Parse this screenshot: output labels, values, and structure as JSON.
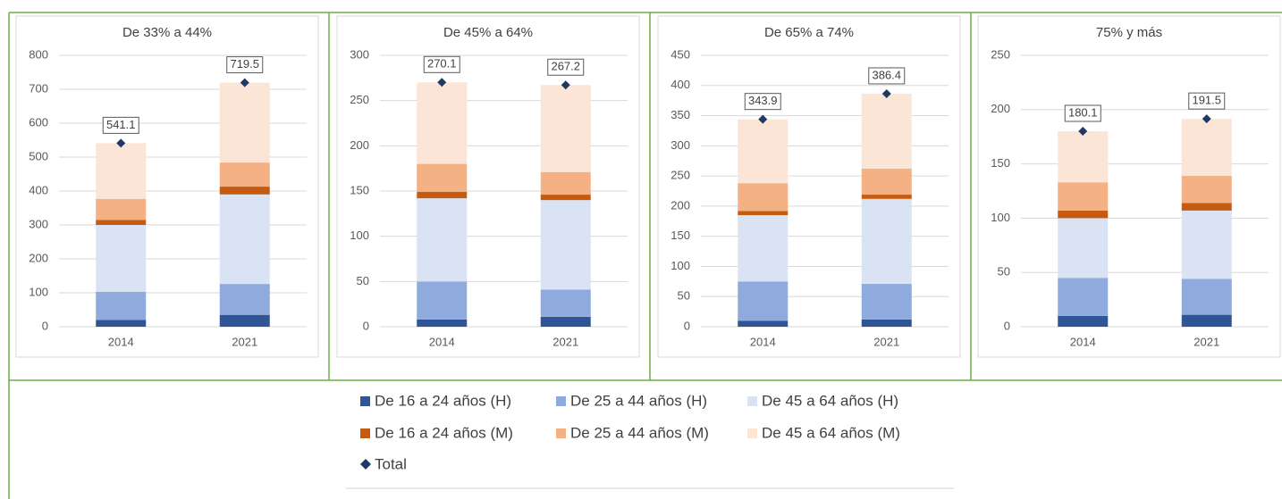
{
  "chart_data": [
    {
      "type": "stacked-bar",
      "title": "De 33% a 44%",
      "categories": [
        "2014",
        "2021"
      ],
      "ylim": [
        0,
        800
      ],
      "yticks": [
        0,
        100,
        200,
        300,
        400,
        500,
        600,
        700,
        800
      ],
      "grid": true,
      "series": [
        {
          "name": "De 16 a 24 años (H)",
          "color": "#2f5597",
          "values": [
            20,
            35
          ]
        },
        {
          "name": "De 25 a 44 años (H)",
          "color": "#8faadc",
          "values": [
            83,
            91
          ]
        },
        {
          "name": "De 45 a 64 años (H)",
          "color": "#dae3f3",
          "values": [
            197,
            264
          ]
        },
        {
          "name": "De 16 a 24 años (M)",
          "color": "#c55a11",
          "values": [
            15,
            23
          ]
        },
        {
          "name": "De 25 a 44 años (M)",
          "color": "#f4b183",
          "values": [
            62,
            71
          ]
        },
        {
          "name": "De 45 a 64 años (M)",
          "color": "#fbe5d6",
          "values": [
            164.1,
            235.5
          ]
        }
      ],
      "total": {
        "name": "Total",
        "color": "#203864",
        "values": [
          541.1,
          719.5
        ]
      }
    },
    {
      "type": "stacked-bar",
      "title": "De 45% a 64%",
      "categories": [
        "2014",
        "2021"
      ],
      "ylim": [
        0,
        300
      ],
      "yticks": [
        0,
        50,
        100,
        150,
        200,
        250,
        300
      ],
      "grid": true,
      "series": [
        {
          "name": "De 16 a 24 años (H)",
          "color": "#2f5597",
          "values": [
            8,
            11
          ]
        },
        {
          "name": "De 25 a 44 años (H)",
          "color": "#8faadc",
          "values": [
            42,
            30
          ]
        },
        {
          "name": "De 45 a 64 años (H)",
          "color": "#dae3f3",
          "values": [
            92,
            99
          ]
        },
        {
          "name": "De 16 a 24 años (M)",
          "color": "#c55a11",
          "values": [
            7,
            6
          ]
        },
        {
          "name": "De 25 a 44 años (M)",
          "color": "#f4b183",
          "values": [
            31,
            25
          ]
        },
        {
          "name": "De 45 a 64 años (M)",
          "color": "#fbe5d6",
          "values": [
            90.1,
            96.2
          ]
        }
      ],
      "total": {
        "name": "Total",
        "color": "#203864",
        "values": [
          270.1,
          267.2
        ]
      }
    },
    {
      "type": "stacked-bar",
      "title": "De 65% a 74%",
      "categories": [
        "2014",
        "2021"
      ],
      "ylim": [
        0,
        450
      ],
      "yticks": [
        0,
        50,
        100,
        150,
        200,
        250,
        300,
        350,
        400,
        450
      ],
      "grid": true,
      "series": [
        {
          "name": "De 16 a 24 años (H)",
          "color": "#2f5597",
          "values": [
            10,
            12
          ]
        },
        {
          "name": "De 25 a 44 años (H)",
          "color": "#8faadc",
          "values": [
            65,
            59
          ]
        },
        {
          "name": "De 45 a 64 años (H)",
          "color": "#dae3f3",
          "values": [
            110,
            141
          ]
        },
        {
          "name": "De 16 a 24 años (M)",
          "color": "#c55a11",
          "values": [
            7,
            7
          ]
        },
        {
          "name": "De 25 a 44 años (M)",
          "color": "#f4b183",
          "values": [
            46,
            43
          ]
        },
        {
          "name": "De 45 a 64 años (M)",
          "color": "#fbe5d6",
          "values": [
            105.9,
            124.4
          ]
        }
      ],
      "total": {
        "name": "Total",
        "color": "#203864",
        "values": [
          343.9,
          386.4
        ]
      }
    },
    {
      "type": "stacked-bar",
      "title": "75% y más",
      "categories": [
        "2014",
        "2021"
      ],
      "ylim": [
        0,
        250
      ],
      "yticks": [
        0,
        50,
        100,
        150,
        200,
        250
      ],
      "grid": true,
      "series": [
        {
          "name": "De 16 a 24 años (H)",
          "color": "#2f5597",
          "values": [
            10,
            11
          ]
        },
        {
          "name": "De 25 a 44 años (H)",
          "color": "#8faadc",
          "values": [
            35,
            33
          ]
        },
        {
          "name": "De 45 a 64 años (H)",
          "color": "#dae3f3",
          "values": [
            55,
            63
          ]
        },
        {
          "name": "De 16 a 24 años (M)",
          "color": "#c55a11",
          "values": [
            7,
            7
          ]
        },
        {
          "name": "De 25 a 44 años (M)",
          "color": "#f4b183",
          "values": [
            26,
            25
          ]
        },
        {
          "name": "De 45 a 64 años (M)",
          "color": "#fbe5d6",
          "values": [
            47.1,
            52.5
          ]
        }
      ],
      "total": {
        "name": "Total",
        "color": "#203864",
        "values": [
          180.1,
          191.5
        ]
      }
    }
  ]
}
